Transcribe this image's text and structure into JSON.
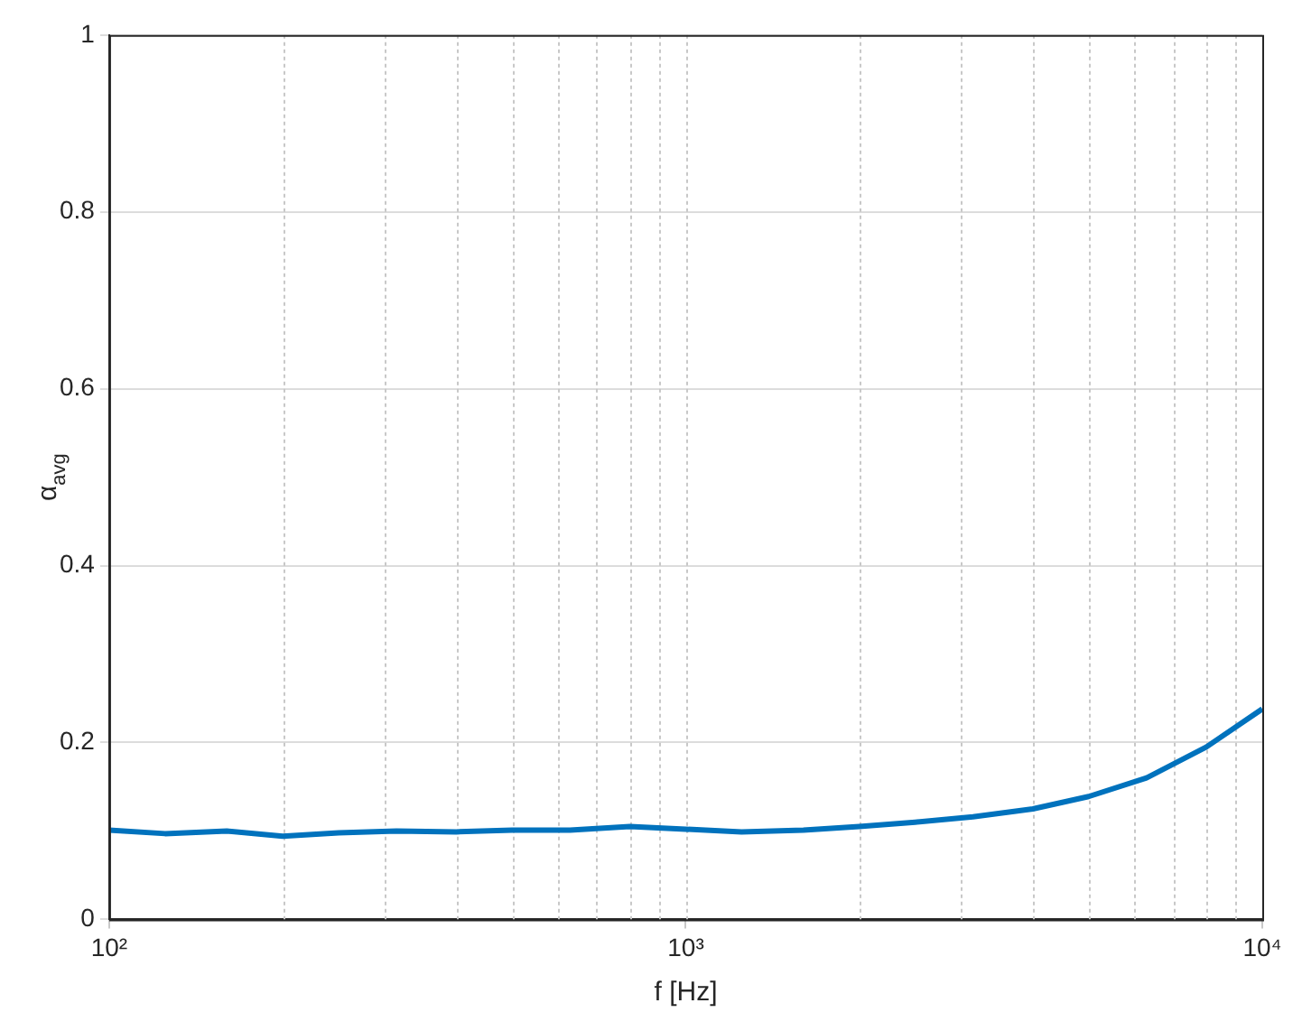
{
  "chart_data": {
    "type": "line",
    "xlabel": "f [Hz]",
    "ylabel": "α$_{avg}$",
    "x": [
      100,
      125,
      160,
      200,
      250,
      315,
      400,
      500,
      630,
      800,
      1000,
      1250,
      1600,
      2000,
      2500,
      3150,
      4000,
      5000,
      6300,
      8000,
      10000
    ],
    "series": [
      {
        "color": "#0072bd",
        "values": [
          0.101,
          0.097,
          0.1,
          0.094,
          0.098,
          0.1,
          0.099,
          0.101,
          0.101,
          0.105,
          0.102,
          0.099,
          0.101,
          0.105,
          0.11,
          0.116,
          0.125,
          0.139,
          0.16,
          0.195,
          0.238
        ]
      }
    ],
    "log": "x",
    "xlim": [
      100,
      10000
    ],
    "xticks": [
      {
        "value": 100,
        "label": "10²"
      },
      {
        "value": 1000,
        "label": "10³"
      },
      {
        "value": 10000,
        "label": "10⁴"
      }
    ],
    "ylim": [
      0,
      1
    ],
    "yticks": [
      0,
      0.2,
      0.4,
      0.6,
      0.8,
      1
    ],
    "grid": true,
    "legend": false,
    "marker": "none",
    "line_style": "solid"
  }
}
